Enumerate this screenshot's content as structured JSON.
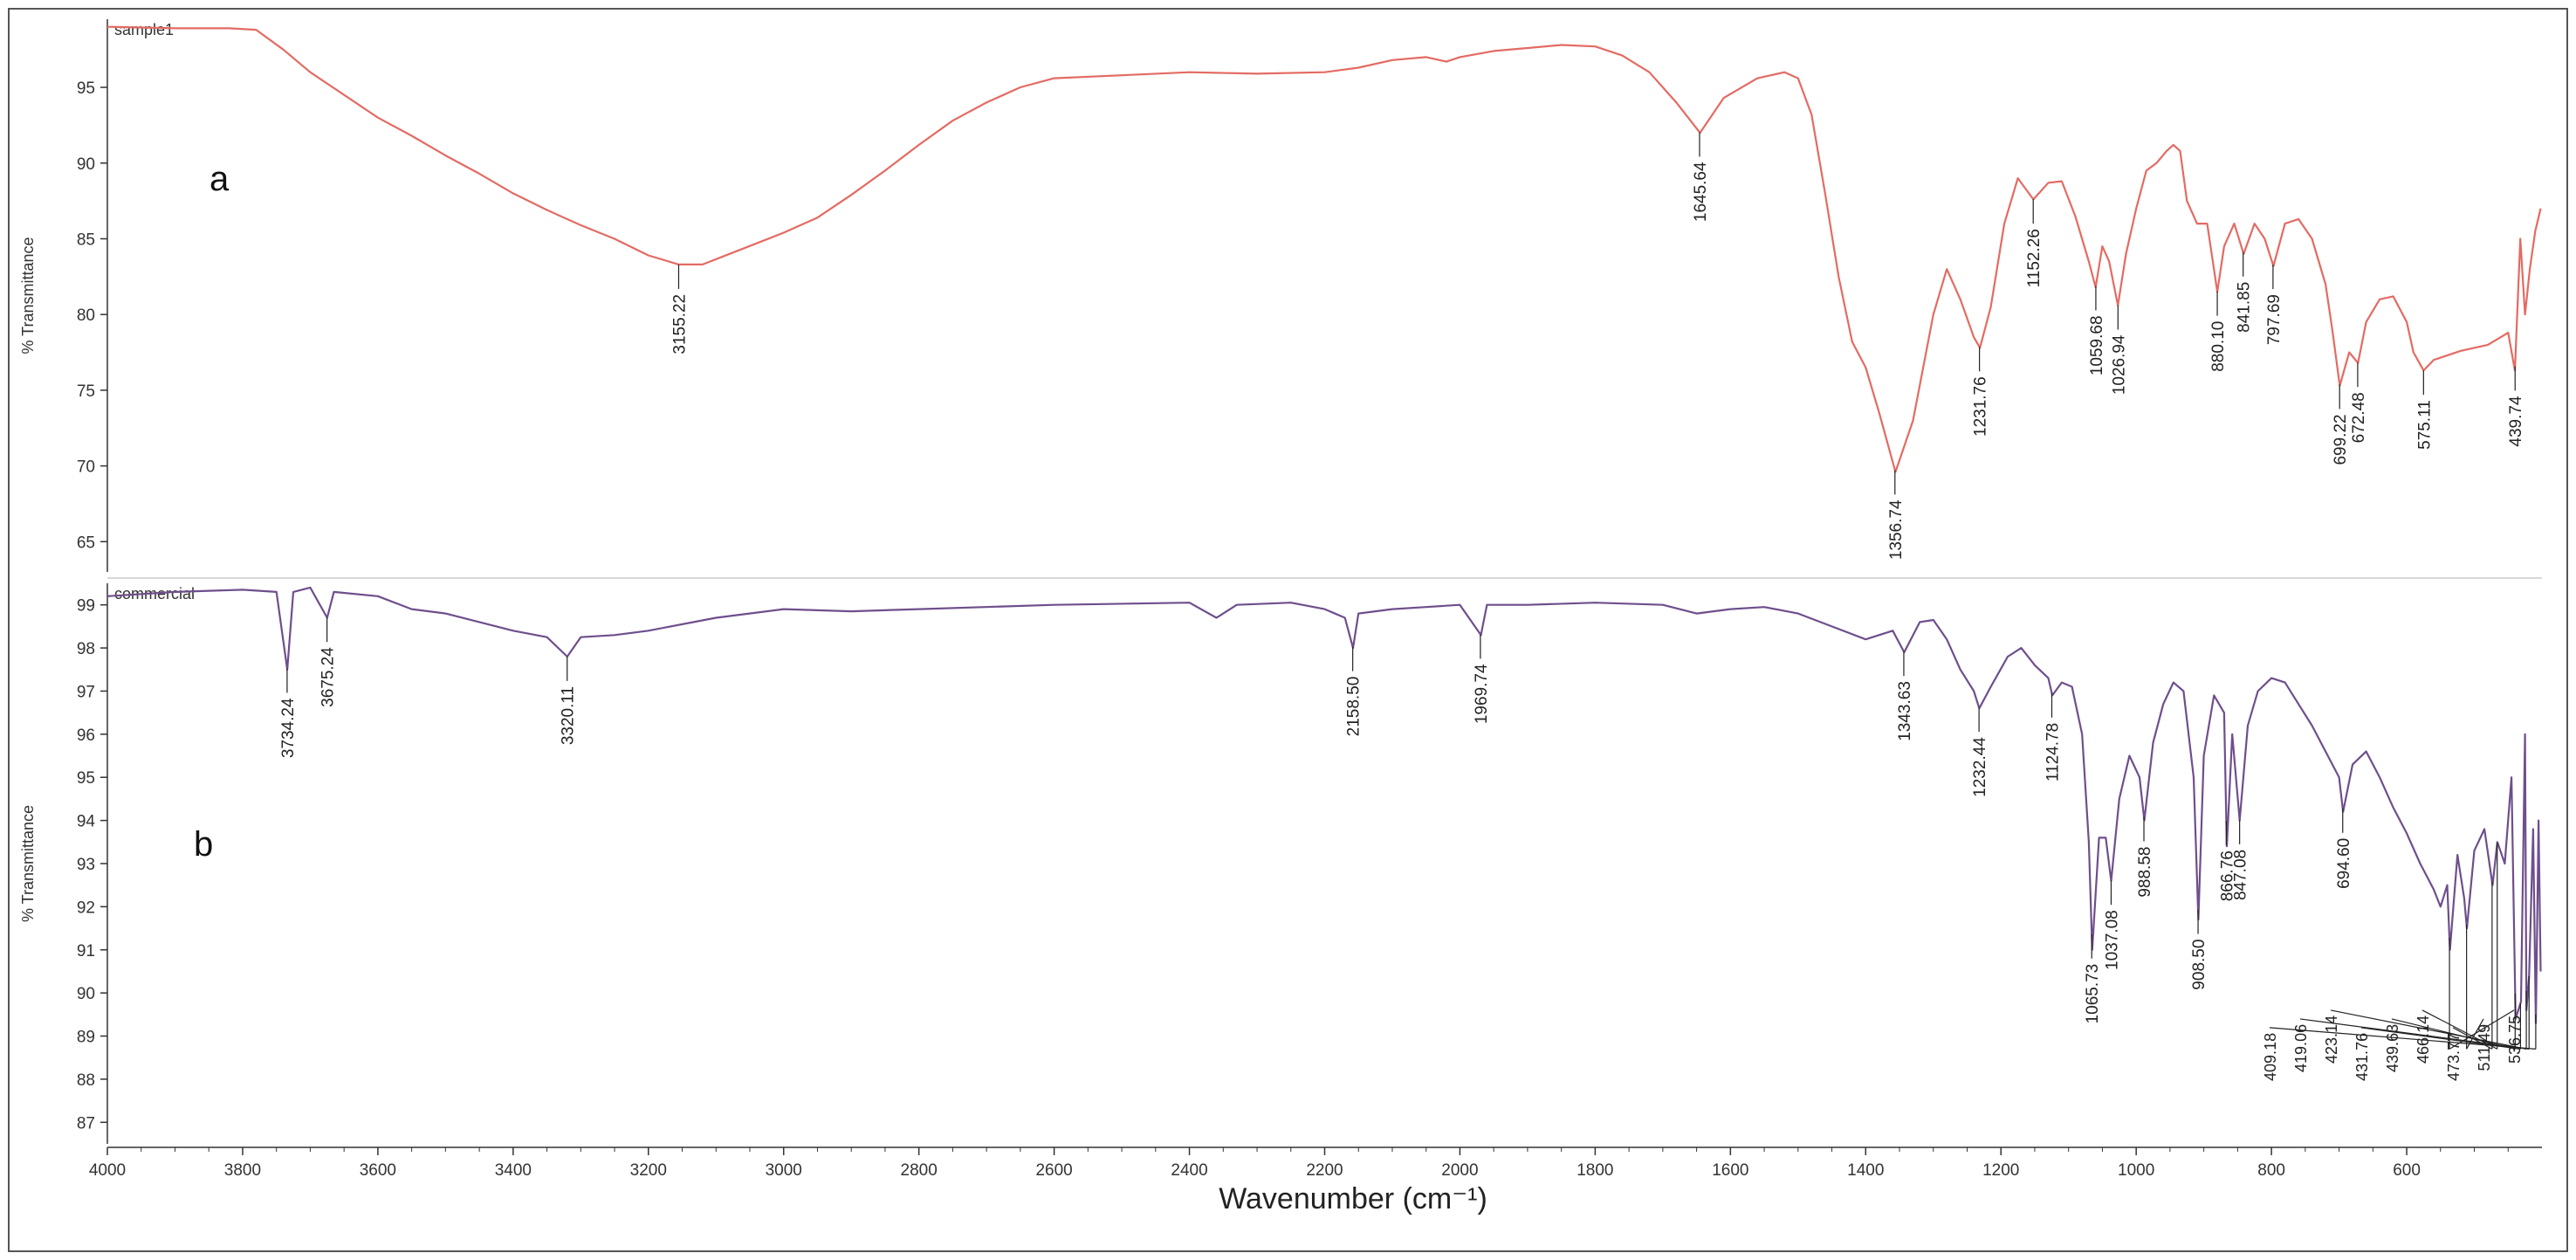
{
  "chart_data": {
    "type": "line",
    "xlabel": "Wavenumber (cm⁻¹)",
    "xlim": [
      4000,
      400
    ],
    "x_ticks": [
      4000,
      3800,
      3600,
      3400,
      3200,
      3000,
      2800,
      2600,
      2400,
      2200,
      2000,
      1800,
      1600,
      1400,
      1200,
      1000,
      800,
      600
    ],
    "colors": {
      "sample1": "#e36b63",
      "commercial": "#6e4f8c",
      "axis": "#333333",
      "frame": "#555555",
      "annotation": "#222222"
    },
    "panels": [
      {
        "id": "a",
        "panel_letter": "a",
        "series_name": "sample1",
        "ylabel": "% Transmittance",
        "ylim": [
          63,
          99.5
        ],
        "y_ticks": [
          65,
          70,
          75,
          80,
          85,
          90,
          95
        ],
        "points": [
          [
            4000,
            99
          ],
          [
            3900,
            98.9
          ],
          [
            3820,
            98.9
          ],
          [
            3780,
            98.8
          ],
          [
            3740,
            97.5
          ],
          [
            3700,
            96
          ],
          [
            3650,
            94.5
          ],
          [
            3600,
            93.0
          ],
          [
            3550,
            91.8
          ],
          [
            3500,
            90.5
          ],
          [
            3450,
            89.3
          ],
          [
            3400,
            88.0
          ],
          [
            3350,
            86.9
          ],
          [
            3300,
            85.9
          ],
          [
            3250,
            85.0
          ],
          [
            3200,
            83.9
          ],
          [
            3155,
            83.3
          ],
          [
            3120,
            83.3
          ],
          [
            3080,
            84.0
          ],
          [
            3000,
            85.4
          ],
          [
            2950,
            86.4
          ],
          [
            2900,
            87.9
          ],
          [
            2850,
            89.5
          ],
          [
            2800,
            91.2
          ],
          [
            2750,
            92.8
          ],
          [
            2700,
            94.0
          ],
          [
            2650,
            95.0
          ],
          [
            2600,
            95.6
          ],
          [
            2500,
            95.8
          ],
          [
            2400,
            96.0
          ],
          [
            2300,
            95.9
          ],
          [
            2200,
            96.0
          ],
          [
            2150,
            96.3
          ],
          [
            2100,
            96.8
          ],
          [
            2050,
            97.0
          ],
          [
            2020,
            96.7
          ],
          [
            2000,
            97.0
          ],
          [
            1950,
            97.4
          ],
          [
            1900,
            97.6
          ],
          [
            1850,
            97.8
          ],
          [
            1800,
            97.7
          ],
          [
            1760,
            97.1
          ],
          [
            1720,
            96.0
          ],
          [
            1680,
            94.0
          ],
          [
            1645,
            92.0
          ],
          [
            1610,
            94.3
          ],
          [
            1560,
            95.6
          ],
          [
            1520,
            96.0
          ],
          [
            1500,
            95.6
          ],
          [
            1480,
            93.2
          ],
          [
            1460,
            88.0
          ],
          [
            1440,
            82.5
          ],
          [
            1420,
            78.2
          ],
          [
            1400,
            76.5
          ],
          [
            1380,
            73.5
          ],
          [
            1356,
            69.6
          ],
          [
            1330,
            73.0
          ],
          [
            1300,
            80.0
          ],
          [
            1280,
            83.0
          ],
          [
            1260,
            81.0
          ],
          [
            1240,
            78.5
          ],
          [
            1231,
            77.8
          ],
          [
            1215,
            80.5
          ],
          [
            1195,
            86.0
          ],
          [
            1175,
            89.0
          ],
          [
            1152,
            87.6
          ],
          [
            1130,
            88.7
          ],
          [
            1110,
            88.8
          ],
          [
            1090,
            86.5
          ],
          [
            1070,
            83.5
          ],
          [
            1060,
            81.8
          ],
          [
            1050,
            84.5
          ],
          [
            1040,
            83.5
          ],
          [
            1027,
            80.6
          ],
          [
            1015,
            84.0
          ],
          [
            1000,
            87.0
          ],
          [
            985,
            89.5
          ],
          [
            970,
            90.0
          ],
          [
            955,
            90.8
          ],
          [
            945,
            91.2
          ],
          [
            935,
            90.8
          ],
          [
            925,
            87.5
          ],
          [
            910,
            86.0
          ],
          [
            895,
            86.0
          ],
          [
            880,
            81.5
          ],
          [
            870,
            84.5
          ],
          [
            855,
            86.0
          ],
          [
            841,
            84.0
          ],
          [
            825,
            86.0
          ],
          [
            810,
            85.0
          ],
          [
            797,
            83.2
          ],
          [
            780,
            86.0
          ],
          [
            760,
            86.3
          ],
          [
            740,
            85.0
          ],
          [
            720,
            82.0
          ],
          [
            710,
            79.0
          ],
          [
            699,
            75.3
          ],
          [
            685,
            77.5
          ],
          [
            672,
            76.8
          ],
          [
            660,
            79.5
          ],
          [
            640,
            81.0
          ],
          [
            620,
            81.2
          ],
          [
            600,
            79.5
          ],
          [
            590,
            77.5
          ],
          [
            575,
            76.3
          ],
          [
            560,
            77.0
          ],
          [
            520,
            77.6
          ],
          [
            480,
            78.0
          ],
          [
            450,
            78.8
          ],
          [
            440,
            76.3
          ],
          [
            432,
            85.0
          ],
          [
            425,
            80.0
          ],
          [
            418,
            83.0
          ],
          [
            410,
            85.5
          ],
          [
            402,
            87.0
          ]
        ],
        "peaks": [
          {
            "wavenumber": 3155.22,
            "label": "3155.22"
          },
          {
            "wavenumber": 1645.64,
            "label": "1645.64"
          },
          {
            "wavenumber": 1356.74,
            "label": "1356.74"
          },
          {
            "wavenumber": 1231.76,
            "label": "1231.76"
          },
          {
            "wavenumber": 1152.26,
            "label": "1152.26"
          },
          {
            "wavenumber": 1059.68,
            "label": "1059.68"
          },
          {
            "wavenumber": 1026.94,
            "label": "1026.94"
          },
          {
            "wavenumber": 880.1,
            "label": "880.10"
          },
          {
            "wavenumber": 841.85,
            "label": "841.85"
          },
          {
            "wavenumber": 797.69,
            "label": "797.69"
          },
          {
            "wavenumber": 699.22,
            "label": "699.22"
          },
          {
            "wavenumber": 672.48,
            "label": "672.48"
          },
          {
            "wavenumber": 575.11,
            "label": "575.11"
          },
          {
            "wavenumber": 439.74,
            "label": "439.74"
          }
        ]
      },
      {
        "id": "b",
        "panel_letter": "b",
        "series_name": "commercial",
        "ylabel": "% Transmittance",
        "ylim": [
          86.5,
          99.5
        ],
        "y_ticks": [
          87,
          88,
          89,
          90,
          91,
          92,
          93,
          94,
          95,
          96,
          97,
          98,
          99
        ],
        "points": [
          [
            4000,
            99.2
          ],
          [
            3900,
            99.3
          ],
          [
            3800,
            99.35
          ],
          [
            3750,
            99.3
          ],
          [
            3734,
            97.5
          ],
          [
            3725,
            99.3
          ],
          [
            3700,
            99.4
          ],
          [
            3675,
            98.7
          ],
          [
            3665,
            99.3
          ],
          [
            3600,
            99.2
          ],
          [
            3550,
            98.9
          ],
          [
            3500,
            98.8
          ],
          [
            3450,
            98.6
          ],
          [
            3400,
            98.4
          ],
          [
            3350,
            98.25
          ],
          [
            3320,
            97.8
          ],
          [
            3300,
            98.25
          ],
          [
            3250,
            98.3
          ],
          [
            3200,
            98.4
          ],
          [
            3100,
            98.7
          ],
          [
            3000,
            98.9
          ],
          [
            2900,
            98.85
          ],
          [
            2800,
            98.9
          ],
          [
            2600,
            99.0
          ],
          [
            2400,
            99.05
          ],
          [
            2360,
            98.7
          ],
          [
            2330,
            99.0
          ],
          [
            2250,
            99.05
          ],
          [
            2200,
            98.9
          ],
          [
            2170,
            98.7
          ],
          [
            2158,
            98.0
          ],
          [
            2150,
            98.8
          ],
          [
            2100,
            98.9
          ],
          [
            2050,
            98.95
          ],
          [
            2000,
            99.0
          ],
          [
            1969,
            98.3
          ],
          [
            1960,
            99.0
          ],
          [
            1900,
            99.0
          ],
          [
            1800,
            99.05
          ],
          [
            1700,
            99.0
          ],
          [
            1650,
            98.8
          ],
          [
            1600,
            98.9
          ],
          [
            1550,
            98.95
          ],
          [
            1500,
            98.8
          ],
          [
            1450,
            98.5
          ],
          [
            1400,
            98.2
          ],
          [
            1360,
            98.4
          ],
          [
            1343,
            97.9
          ],
          [
            1320,
            98.6
          ],
          [
            1300,
            98.65
          ],
          [
            1280,
            98.2
          ],
          [
            1260,
            97.5
          ],
          [
            1240,
            97.0
          ],
          [
            1232,
            96.6
          ],
          [
            1215,
            97.1
          ],
          [
            1190,
            97.8
          ],
          [
            1170,
            98.0
          ],
          [
            1150,
            97.6
          ],
          [
            1130,
            97.3
          ],
          [
            1124,
            96.9
          ],
          [
            1110,
            97.2
          ],
          [
            1095,
            97.1
          ],
          [
            1080,
            96.0
          ],
          [
            1070,
            93.5
          ],
          [
            1065,
            91.0
          ],
          [
            1055,
            93.6
          ],
          [
            1045,
            93.6
          ],
          [
            1037,
            92.6
          ],
          [
            1025,
            94.5
          ],
          [
            1010,
            95.5
          ],
          [
            995,
            95.0
          ],
          [
            988,
            94.0
          ],
          [
            975,
            95.8
          ],
          [
            960,
            96.7
          ],
          [
            945,
            97.2
          ],
          [
            930,
            97.0
          ],
          [
            915,
            95.0
          ],
          [
            908,
            91.7
          ],
          [
            900,
            95.5
          ],
          [
            885,
            96.9
          ],
          [
            870,
            96.5
          ],
          [
            866,
            93.4
          ],
          [
            858,
            96.0
          ],
          [
            847,
            94.0
          ],
          [
            835,
            96.2
          ],
          [
            820,
            97.0
          ],
          [
            800,
            97.3
          ],
          [
            780,
            97.2
          ],
          [
            760,
            96.7
          ],
          [
            740,
            96.2
          ],
          [
            720,
            95.6
          ],
          [
            700,
            95.0
          ],
          [
            694,
            94.2
          ],
          [
            680,
            95.3
          ],
          [
            660,
            95.6
          ],
          [
            640,
            95.0
          ],
          [
            620,
            94.3
          ],
          [
            600,
            93.7
          ],
          [
            580,
            93.0
          ],
          [
            560,
            92.4
          ],
          [
            550,
            92.0
          ],
          [
            540,
            92.5
          ],
          [
            536,
            91.0
          ],
          [
            525,
            93.2
          ],
          [
            515,
            92.2
          ],
          [
            511,
            91.5
          ],
          [
            500,
            93.3
          ],
          [
            485,
            93.8
          ],
          [
            473,
            92.5
          ],
          [
            466,
            93.5
          ],
          [
            455,
            93.0
          ],
          [
            445,
            95.0
          ],
          [
            439,
            89.4
          ],
          [
            431,
            89.8
          ],
          [
            425,
            96.0
          ],
          [
            423,
            89.6
          ],
          [
            419,
            90.4
          ],
          [
            413,
            93.8
          ],
          [
            409,
            89.3
          ],
          [
            405,
            94.0
          ],
          [
            402,
            90.5
          ]
        ],
        "peaks": [
          {
            "wavenumber": 3734.24,
            "label": "3734.24"
          },
          {
            "wavenumber": 3675.24,
            "label": "3675.24"
          },
          {
            "wavenumber": 3320.11,
            "label": "3320.11"
          },
          {
            "wavenumber": 2158.5,
            "label": "2158.50"
          },
          {
            "wavenumber": 1969.74,
            "label": "1969.74"
          },
          {
            "wavenumber": 1343.63,
            "label": "1343.63"
          },
          {
            "wavenumber": 1232.44,
            "label": "1232.44"
          },
          {
            "wavenumber": 1124.78,
            "label": "1124.78"
          },
          {
            "wavenumber": 1065.73,
            "label": "1065.73"
          },
          {
            "wavenumber": 1037.08,
            "label": "1037.08"
          },
          {
            "wavenumber": 988.58,
            "label": "988.58"
          },
          {
            "wavenumber": 908.5,
            "label": "908.50"
          },
          {
            "wavenumber": 866.76,
            "label": "866.76"
          },
          {
            "wavenumber": 847.08,
            "label": "847.08"
          },
          {
            "wavenumber": 694.6,
            "label": "694.60"
          }
        ],
        "leader_peaks": [
          {
            "wavenumber": 536.75,
            "label": "536.75"
          },
          {
            "wavenumber": 511.49,
            "label": "511.49"
          },
          {
            "wavenumber": 473.77,
            "label": "473.77"
          },
          {
            "wavenumber": 466.14,
            "label": "466.14"
          },
          {
            "wavenumber": 439.63,
            "label": "439.63"
          },
          {
            "wavenumber": 431.76,
            "label": "431.76"
          },
          {
            "wavenumber": 423.14,
            "label": "423.14"
          },
          {
            "wavenumber": 419.06,
            "label": "419.06"
          },
          {
            "wavenumber": 409.18,
            "label": "409.18"
          }
        ]
      }
    ]
  }
}
